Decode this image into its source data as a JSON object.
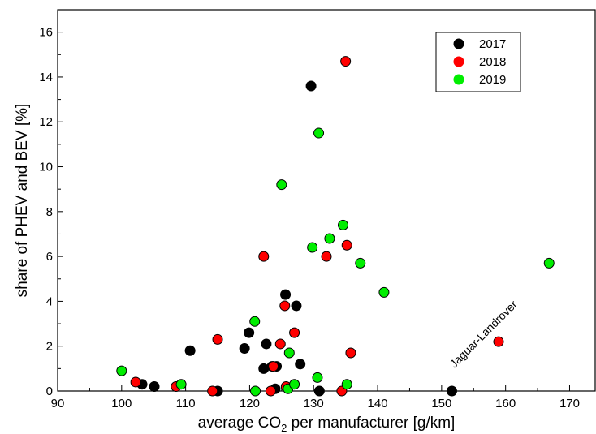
{
  "chart_data": {
    "type": "scatter",
    "title": "",
    "xlabel_parts": [
      "average CO",
      "2",
      " per manufacturer [g/km]"
    ],
    "ylabel": "share of PHEV and BEV [%]",
    "xlim": [
      90,
      174
    ],
    "ylim": [
      0,
      17
    ],
    "xticks": [
      90,
      100,
      110,
      120,
      130,
      140,
      150,
      160,
      170
    ],
    "yticks": [
      0,
      2,
      4,
      6,
      8,
      10,
      12,
      14,
      16
    ],
    "grid": false,
    "legend_position": "top-right",
    "series": [
      {
        "name": "2017",
        "color": "#000000",
        "points": [
          {
            "x": 103.2,
            "y": 0.3
          },
          {
            "x": 105.1,
            "y": 0.2
          },
          {
            "x": 110.7,
            "y": 1.8
          },
          {
            "x": 115.0,
            "y": 0.0
          },
          {
            "x": 119.2,
            "y": 1.9
          },
          {
            "x": 119.9,
            "y": 2.6
          },
          {
            "x": 122.2,
            "y": 1.0
          },
          {
            "x": 122.6,
            "y": 2.1
          },
          {
            "x": 123.5,
            "y": 1.1
          },
          {
            "x": 124.2,
            "y": 1.1
          },
          {
            "x": 124.0,
            "y": 0.1
          },
          {
            "x": 125.6,
            "y": 4.3
          },
          {
            "x": 127.3,
            "y": 3.8
          },
          {
            "x": 127.9,
            "y": 1.2
          },
          {
            "x": 129.6,
            "y": 13.6
          },
          {
            "x": 130.9,
            "y": 0.0
          },
          {
            "x": 151.6,
            "y": 0.0
          }
        ]
      },
      {
        "name": "2018",
        "color": "#ff0000",
        "points": [
          {
            "x": 102.2,
            "y": 0.4
          },
          {
            "x": 108.5,
            "y": 0.2
          },
          {
            "x": 114.2,
            "y": 0.0
          },
          {
            "x": 115.0,
            "y": 2.3
          },
          {
            "x": 122.2,
            "y": 6.0
          },
          {
            "x": 123.3,
            "y": 0.0
          },
          {
            "x": 123.7,
            "y": 1.1
          },
          {
            "x": 124.8,
            "y": 2.1
          },
          {
            "x": 125.5,
            "y": 3.8
          },
          {
            "x": 125.7,
            "y": 0.2
          },
          {
            "x": 127.0,
            "y": 2.6
          },
          {
            "x": 132.0,
            "y": 6.0
          },
          {
            "x": 134.4,
            "y": 0.0
          },
          {
            "x": 135.0,
            "y": 14.7
          },
          {
            "x": 135.2,
            "y": 6.5
          },
          {
            "x": 135.8,
            "y": 1.7
          },
          {
            "x": 158.9,
            "y": 2.2
          }
        ]
      },
      {
        "name": "2019",
        "color": "#00ee00",
        "points": [
          {
            "x": 100.0,
            "y": 0.9
          },
          {
            "x": 109.3,
            "y": 0.3
          },
          {
            "x": 120.8,
            "y": 3.1
          },
          {
            "x": 120.9,
            "y": 0.0
          },
          {
            "x": 125.0,
            "y": 9.2
          },
          {
            "x": 126.0,
            "y": 0.1
          },
          {
            "x": 126.2,
            "y": 1.7
          },
          {
            "x": 127.0,
            "y": 0.3
          },
          {
            "x": 129.8,
            "y": 6.4
          },
          {
            "x": 130.6,
            "y": 0.6
          },
          {
            "x": 130.8,
            "y": 11.5
          },
          {
            "x": 132.5,
            "y": 6.8
          },
          {
            "x": 134.6,
            "y": 7.4
          },
          {
            "x": 135.2,
            "y": 0.3
          },
          {
            "x": 137.3,
            "y": 5.7
          },
          {
            "x": 141.0,
            "y": 4.4
          },
          {
            "x": 166.8,
            "y": 5.7
          }
        ]
      }
    ],
    "annotations": [
      {
        "text": "Jaguar-Landrover",
        "x": 152,
        "y": 1.0,
        "rotation": -45
      }
    ]
  }
}
